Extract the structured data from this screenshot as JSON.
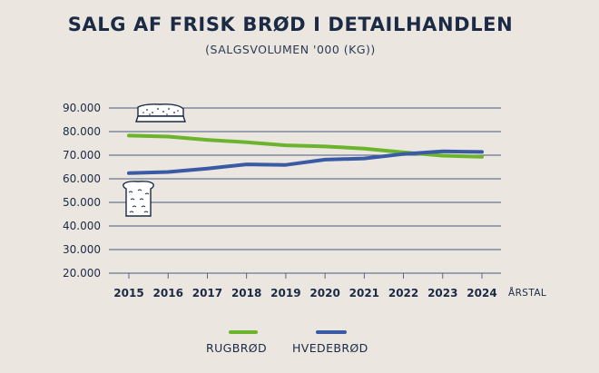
{
  "colors": {
    "background": "#ebe7e0",
    "text": "#1b2a45",
    "grid": "#4a5a7a",
    "rugbrod": "#6bb42c",
    "hvedebrod": "#3a5aa6"
  },
  "icons": {
    "top": "bread-slice-icon",
    "side": "rye-bread-icon"
  },
  "chart_data": {
    "type": "line",
    "title": "SALG AF FRISK BRØD I DETAILHANDLEN",
    "subtitle": "(SALGSVOLUMEN '000 (KG))",
    "xlabel": "ÅRSTAL",
    "ylabel": "",
    "x": [
      "2015",
      "2016",
      "2017",
      "2018",
      "2019",
      "2020",
      "2021",
      "2022",
      "2023",
      "2024"
    ],
    "ylim": [
      20000,
      90000
    ],
    "yticks": [
      20000,
      30000,
      40000,
      50000,
      60000,
      70000,
      80000,
      90000
    ],
    "ytick_labels": [
      "20.000",
      "30.000",
      "40.000",
      "50.000",
      "60.000",
      "70.000",
      "80.000",
      "90.000"
    ],
    "grid": true,
    "legend_position": "bottom",
    "series": [
      {
        "name": "RUGBRØD",
        "color": "#6bb42c",
        "values": [
          78300,
          77900,
          76500,
          75500,
          74200,
          73700,
          72800,
          71200,
          69800,
          69300
        ]
      },
      {
        "name": "HVEDEBRØD",
        "color": "#3a5aa6",
        "values": [
          62400,
          62900,
          64300,
          66100,
          65900,
          68100,
          68600,
          70500,
          71600,
          71400
        ]
      }
    ]
  }
}
